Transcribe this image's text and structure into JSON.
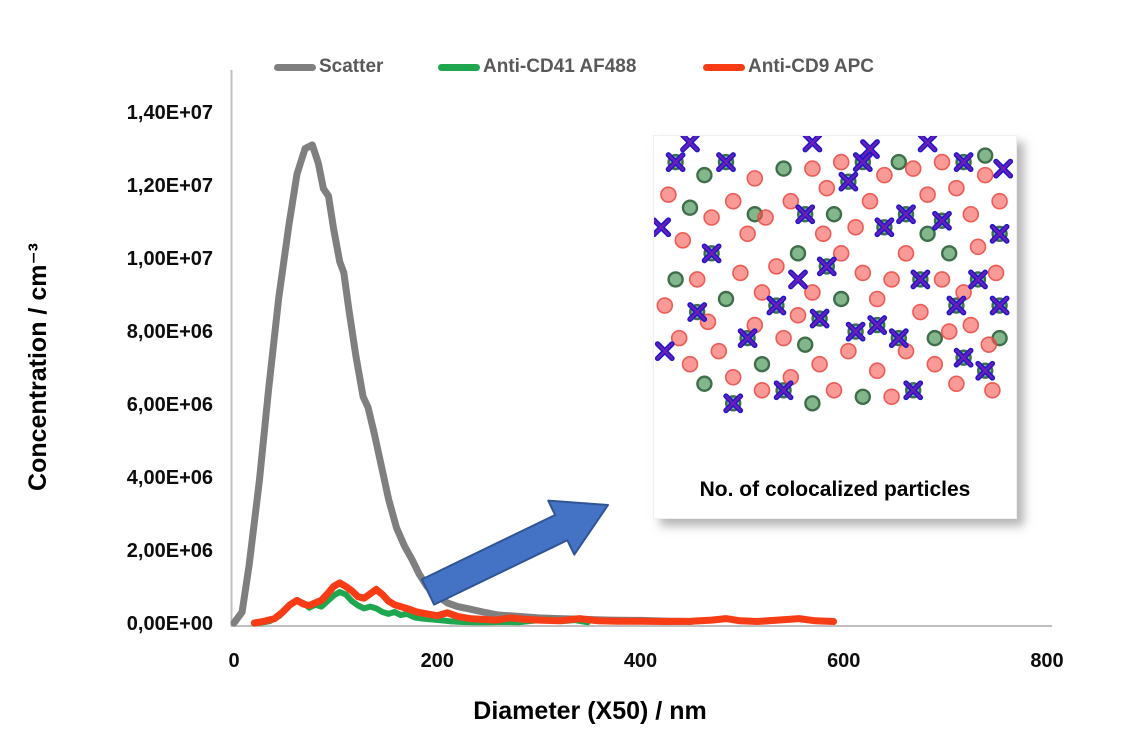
{
  "legend": {
    "items": [
      {
        "label": "Scatter",
        "color": "#7F7F7F"
      },
      {
        "label": "Anti-CD41 AF488",
        "color": "#1FA750"
      },
      {
        "label": "Anti-CD9 APC",
        "color": "#F83C15"
      }
    ]
  },
  "axes": {
    "y_title": "Concentration / cm⁻³",
    "x_title": "Diameter (X50) / nm"
  },
  "chart_data": {
    "type": "line",
    "xlabel": "Diameter (X50) / nm",
    "ylabel": "Concentration / cm⁻³",
    "xlim": [
      0,
      800
    ],
    "ylim": [
      0,
      14000000
    ],
    "grid": false,
    "legend_position": "top",
    "x_tick_values": [
      0,
      200,
      400,
      600,
      800
    ],
    "x_tick_labels": [
      "0",
      "200",
      "400",
      "600",
      "800"
    ],
    "y_tick_values_e6": [
      0,
      2,
      4,
      6,
      8,
      10,
      12,
      14
    ],
    "y_tick_labels": [
      "0,00E+00",
      "2,00E+06",
      "4,00E+06",
      "6,00E+06",
      "8,00E+06",
      "1,00E+07",
      "1,20E+07",
      "1,40E+07"
    ],
    "series": [
      {
        "name": "Scatter",
        "color": "#7F7F7F",
        "stroke_width": 7,
        "points_nm_e6": [
          [
            0,
            0
          ],
          [
            8,
            0.3
          ],
          [
            15,
            1.6
          ],
          [
            25,
            3.9
          ],
          [
            34,
            6.4
          ],
          [
            44,
            8.9
          ],
          [
            54,
            10.9
          ],
          [
            62,
            12.3
          ],
          [
            70,
            13.0
          ],
          [
            77,
            13.1
          ],
          [
            83,
            12.6
          ],
          [
            88,
            11.9
          ],
          [
            93,
            11.7
          ],
          [
            98,
            10.8
          ],
          [
            104,
            9.9
          ],
          [
            108,
            9.6
          ],
          [
            113,
            8.6
          ],
          [
            120,
            7.3
          ],
          [
            127,
            6.2
          ],
          [
            132,
            5.9
          ],
          [
            138,
            5.2
          ],
          [
            145,
            4.3
          ],
          [
            152,
            3.4
          ],
          [
            160,
            2.6
          ],
          [
            168,
            2.1
          ],
          [
            175,
            1.75
          ],
          [
            182,
            1.35
          ],
          [
            190,
            1.0
          ],
          [
            200,
            0.75
          ],
          [
            210,
            0.55
          ],
          [
            220,
            0.45
          ],
          [
            232,
            0.38
          ],
          [
            245,
            0.3
          ],
          [
            260,
            0.22
          ],
          [
            280,
            0.18
          ],
          [
            300,
            0.14
          ],
          [
            320,
            0.12
          ],
          [
            345,
            0.1
          ],
          [
            370,
            0.08
          ],
          [
            400,
            0.07
          ],
          [
            430,
            0.05
          ],
          [
            450,
            0.04
          ]
        ]
      },
      {
        "name": "Anti-CD41 AF488",
        "color": "#1FA750",
        "stroke_width": 6,
        "points_nm_e6": [
          [
            25,
            0
          ],
          [
            35,
            0.05
          ],
          [
            45,
            0.2
          ],
          [
            55,
            0.5
          ],
          [
            62,
            0.62
          ],
          [
            68,
            0.55
          ],
          [
            74,
            0.42
          ],
          [
            80,
            0.5
          ],
          [
            86,
            0.45
          ],
          [
            92,
            0.6
          ],
          [
            98,
            0.75
          ],
          [
            104,
            0.85
          ],
          [
            110,
            0.78
          ],
          [
            116,
            0.6
          ],
          [
            122,
            0.48
          ],
          [
            128,
            0.4
          ],
          [
            134,
            0.45
          ],
          [
            140,
            0.4
          ],
          [
            146,
            0.3
          ],
          [
            152,
            0.25
          ],
          [
            158,
            0.3
          ],
          [
            164,
            0.22
          ],
          [
            170,
            0.25
          ],
          [
            178,
            0.15
          ],
          [
            186,
            0.12
          ],
          [
            194,
            0.1
          ],
          [
            202,
            0.08
          ],
          [
            212,
            0.05
          ],
          [
            222,
            0.03
          ],
          [
            235,
            0.02
          ],
          [
            250,
            0.02
          ],
          [
            265,
            0.03
          ],
          [
            280,
            0.02
          ],
          [
            300,
            0.08
          ],
          [
            312,
            0.1
          ],
          [
            322,
            0.05
          ],
          [
            335,
            0.08
          ],
          [
            348,
            0.02
          ]
        ]
      },
      {
        "name": "Anti-CD9 APC",
        "color": "#F83C15",
        "stroke_width": 7,
        "points_nm_e6": [
          [
            20,
            0
          ],
          [
            30,
            0.05
          ],
          [
            40,
            0.12
          ],
          [
            48,
            0.3
          ],
          [
            55,
            0.5
          ],
          [
            62,
            0.62
          ],
          [
            68,
            0.52
          ],
          [
            74,
            0.48
          ],
          [
            80,
            0.55
          ],
          [
            86,
            0.62
          ],
          [
            92,
            0.8
          ],
          [
            98,
            1.0
          ],
          [
            104,
            1.1
          ],
          [
            110,
            1.0
          ],
          [
            116,
            0.88
          ],
          [
            122,
            0.72
          ],
          [
            128,
            0.68
          ],
          [
            134,
            0.8
          ],
          [
            140,
            0.92
          ],
          [
            146,
            0.78
          ],
          [
            152,
            0.6
          ],
          [
            158,
            0.5
          ],
          [
            164,
            0.45
          ],
          [
            172,
            0.38
          ],
          [
            180,
            0.3
          ],
          [
            190,
            0.25
          ],
          [
            200,
            0.2
          ],
          [
            210,
            0.28
          ],
          [
            220,
            0.18
          ],
          [
            232,
            0.12
          ],
          [
            245,
            0.1
          ],
          [
            258,
            0.08
          ],
          [
            272,
            0.14
          ],
          [
            286,
            0.1
          ],
          [
            300,
            0.08
          ],
          [
            320,
            0.06
          ],
          [
            340,
            0.12
          ],
          [
            358,
            0.06
          ],
          [
            378,
            0.05
          ],
          [
            400,
            0.05
          ],
          [
            425,
            0.04
          ],
          [
            450,
            0.05
          ],
          [
            470,
            0.08
          ],
          [
            484,
            0.12
          ],
          [
            498,
            0.06
          ],
          [
            515,
            0.04
          ],
          [
            535,
            0.08
          ],
          [
            556,
            0.12
          ],
          [
            572,
            0.06
          ],
          [
            590,
            0.04
          ]
        ]
      }
    ]
  },
  "inset": {
    "caption": "No. of colocalized particles",
    "red_dot_color": "rgba(246,92,86,0.62)",
    "red_dot_edge": "rgba(236,72,66,0.85)",
    "green_dot_color": "rgba(96,162,106,0.78)",
    "green_dot_edge": "#3F6F4A",
    "cross_color": "#1D16CE",
    "cross_core_color": "#8E24AA",
    "red_dots_pct": [
      [
        4,
        18
      ],
      [
        8,
        32
      ],
      [
        3,
        52
      ],
      [
        7,
        62
      ],
      [
        12,
        44
      ],
      [
        15,
        57
      ],
      [
        10,
        70
      ],
      [
        18,
        66
      ],
      [
        22,
        74
      ],
      [
        16,
        25
      ],
      [
        22,
        20
      ],
      [
        28,
        13
      ],
      [
        26,
        30
      ],
      [
        31,
        25
      ],
      [
        24,
        42
      ],
      [
        30,
        48
      ],
      [
        34,
        40
      ],
      [
        28,
        58
      ],
      [
        36,
        62
      ],
      [
        40,
        55
      ],
      [
        44,
        48
      ],
      [
        38,
        20
      ],
      [
        44,
        10
      ],
      [
        48,
        16
      ],
      [
        52,
        8
      ],
      [
        47,
        30
      ],
      [
        52,
        36
      ],
      [
        56,
        28
      ],
      [
        60,
        20
      ],
      [
        58,
        42
      ],
      [
        62,
        50
      ],
      [
        66,
        44
      ],
      [
        70,
        36
      ],
      [
        64,
        12
      ],
      [
        72,
        10
      ],
      [
        76,
        18
      ],
      [
        80,
        8
      ],
      [
        84,
        16
      ],
      [
        88,
        24
      ],
      [
        92,
        12
      ],
      [
        96,
        20
      ],
      [
        90,
        34
      ],
      [
        95,
        42
      ],
      [
        86,
        48
      ],
      [
        80,
        44
      ],
      [
        74,
        54
      ],
      [
        82,
        60
      ],
      [
        88,
        58
      ],
      [
        93,
        64
      ],
      [
        78,
        70
      ],
      [
        70,
        66
      ],
      [
        62,
        72
      ],
      [
        54,
        66
      ],
      [
        46,
        70
      ],
      [
        38,
        74
      ],
      [
        30,
        78
      ],
      [
        50,
        78
      ],
      [
        66,
        80
      ],
      [
        84,
        76
      ],
      [
        94,
        78
      ]
    ],
    "green_dots_pct": [
      [
        6,
        8
      ],
      [
        14,
        12
      ],
      [
        20,
        8
      ],
      [
        10,
        22
      ],
      [
        16,
        36
      ],
      [
        6,
        44
      ],
      [
        12,
        54
      ],
      [
        20,
        50
      ],
      [
        26,
        62
      ],
      [
        14,
        76
      ],
      [
        22,
        82
      ],
      [
        30,
        70
      ],
      [
        36,
        78
      ],
      [
        42,
        64
      ],
      [
        34,
        52
      ],
      [
        40,
        36
      ],
      [
        36,
        10
      ],
      [
        42,
        24
      ],
      [
        48,
        40
      ],
      [
        46,
        56
      ],
      [
        52,
        50
      ],
      [
        56,
        60
      ],
      [
        50,
        24
      ],
      [
        58,
        8
      ],
      [
        64,
        28
      ],
      [
        62,
        58
      ],
      [
        68,
        62
      ],
      [
        74,
        44
      ],
      [
        70,
        24
      ],
      [
        76,
        30
      ],
      [
        80,
        26
      ],
      [
        86,
        8
      ],
      [
        92,
        6
      ],
      [
        96,
        30
      ],
      [
        90,
        44
      ],
      [
        96,
        52
      ],
      [
        84,
        52
      ],
      [
        78,
        62
      ],
      [
        86,
        68
      ],
      [
        92,
        72
      ],
      [
        72,
        78
      ],
      [
        58,
        80
      ],
      [
        44,
        82
      ],
      [
        28,
        24
      ],
      [
        68,
        8
      ],
      [
        82,
        36
      ],
      [
        96,
        62
      ],
      [
        54,
        14
      ]
    ],
    "cross_markers_pct": [
      [
        6,
        8
      ],
      [
        20,
        8
      ],
      [
        16,
        36
      ],
      [
        12,
        54
      ],
      [
        26,
        62
      ],
      [
        22,
        82
      ],
      [
        36,
        78
      ],
      [
        34,
        52
      ],
      [
        42,
        24
      ],
      [
        46,
        56
      ],
      [
        56,
        60
      ],
      [
        58,
        8
      ],
      [
        64,
        28
      ],
      [
        68,
        62
      ],
      [
        70,
        24
      ],
      [
        80,
        26
      ],
      [
        86,
        8
      ],
      [
        96,
        30
      ],
      [
        90,
        44
      ],
      [
        84,
        52
      ],
      [
        86,
        68
      ],
      [
        92,
        72
      ],
      [
        72,
        78
      ],
      [
        54,
        14
      ],
      [
        48,
        40
      ],
      [
        62,
        58
      ],
      [
        74,
        44
      ],
      [
        96,
        52
      ],
      [
        2,
        28
      ],
      [
        3,
        66
      ],
      [
        10,
        2
      ],
      [
        44,
        2
      ],
      [
        60,
        4
      ],
      [
        76,
        2
      ],
      [
        97,
        10
      ],
      [
        40,
        44
      ]
    ]
  },
  "callout": {
    "arrow_fill": "#4472C4",
    "arrow_edge": "#2F5597"
  }
}
